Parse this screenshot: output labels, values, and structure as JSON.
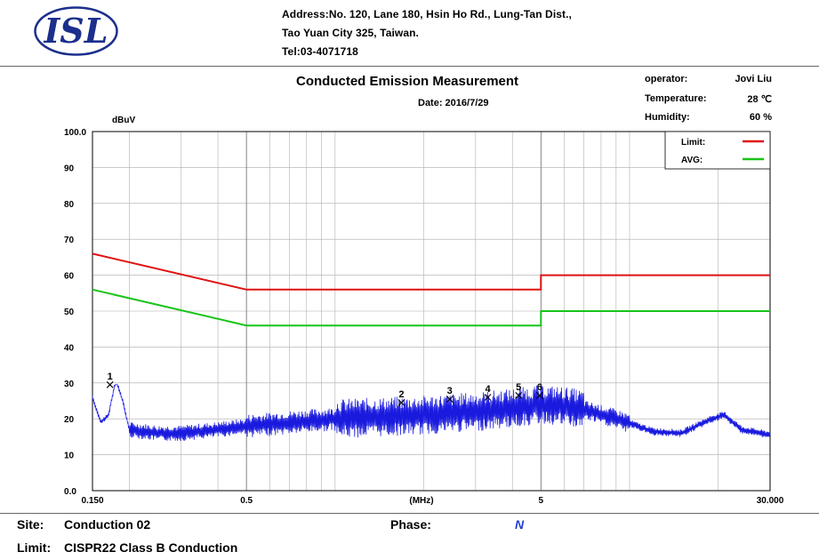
{
  "header": {
    "logo": "ISL",
    "address_line1": "Address:No. 120, Lane 180, Hsin Ho Rd., Lung-Tan Dist.,",
    "address_line2": "Tao Yuan City 325, Taiwan.",
    "address_line3": "Tel:03-4071718"
  },
  "report": {
    "title": "Conducted Emission Measurement",
    "date": "Date: 2016/7/29",
    "operator_label": "operator:",
    "operator_value": "Jovi Liu",
    "temperature_label": "Temperature:",
    "temperature_value": "28 ℃",
    "humidity_label": "Humidity:",
    "humidity_value": "60 %"
  },
  "footer": {
    "site_label": "Site:",
    "site_value": "Conduction 02",
    "phase_label": "Phase:",
    "phase_value": "N",
    "limit_label": "Limit:",
    "limit_value": "CISPR22 Class B Conduction"
  },
  "chart_data": {
    "type": "line",
    "title": "",
    "ylabel": "dBuV",
    "xlabel": "(MHz)",
    "x_scale": "log",
    "xlim": [
      0.15,
      30
    ],
    "ylim": [
      0,
      100
    ],
    "y_ticks": [
      0,
      10,
      20,
      30,
      40,
      50,
      60,
      70,
      80,
      90,
      100
    ],
    "y_tick_labels": [
      "0.0",
      "10",
      "20",
      "30",
      "40",
      "50",
      "60",
      "70",
      "80",
      "90",
      "100.0"
    ],
    "x_ticks": [
      0.15,
      0.5,
      5,
      30
    ],
    "x_tick_labels": [
      "0.150",
      "0.5",
      "5",
      "30.000"
    ],
    "grid": true,
    "legend_position": "top-right",
    "series": [
      {
        "name": "Limit:",
        "color": "#e01010",
        "points": [
          [
            0.15,
            66
          ],
          [
            0.5,
            56
          ],
          [
            5,
            56
          ],
          [
            5,
            60
          ],
          [
            30,
            60
          ]
        ]
      },
      {
        "name": "AVG:",
        "color": "#18c418",
        "points": [
          [
            0.15,
            56
          ],
          [
            0.5,
            46
          ],
          [
            5,
            46
          ],
          [
            5,
            50
          ],
          [
            30,
            50
          ]
        ]
      }
    ],
    "trace": {
      "color": "#1a1adf",
      "profile": [
        [
          0.15,
          26
        ],
        [
          0.16,
          19
        ],
        [
          0.17,
          21
        ],
        [
          0.18,
          31
        ],
        [
          0.19,
          25
        ],
        [
          0.2,
          17
        ],
        [
          0.25,
          16
        ],
        [
          0.3,
          16
        ],
        [
          0.4,
          17
        ],
        [
          0.5,
          18
        ],
        [
          1.0,
          20
        ],
        [
          2.0,
          21
        ],
        [
          3.0,
          22
        ],
        [
          4.0,
          23
        ],
        [
          5.0,
          24
        ],
        [
          6.0,
          23.5
        ],
        [
          7.0,
          22.5
        ],
        [
          9.0,
          20
        ],
        [
          12.0,
          16.5
        ],
        [
          15.0,
          16
        ],
        [
          19.0,
          20
        ],
        [
          21.0,
          21
        ],
        [
          24.0,
          17
        ],
        [
          30.0,
          15.5
        ]
      ]
    },
    "markers": [
      {
        "label": "1",
        "x": 0.172,
        "y": 29.5
      },
      {
        "label": "2",
        "x": 1.68,
        "y": 24.5
      },
      {
        "label": "3",
        "x": 2.45,
        "y": 25.5
      },
      {
        "label": "4",
        "x": 3.3,
        "y": 26
      },
      {
        "label": "5",
        "x": 4.2,
        "y": 26.5
      },
      {
        "label": "6",
        "x": 4.95,
        "y": 26.5
      }
    ]
  }
}
